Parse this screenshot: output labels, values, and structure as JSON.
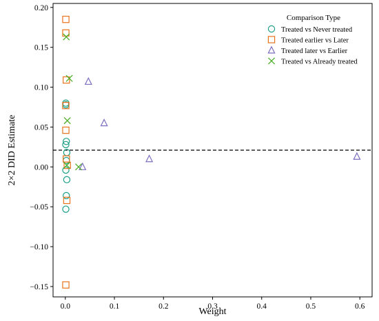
{
  "chart_data": {
    "type": "scatter",
    "xlabel": "Weight",
    "ylabel": "2×2 DID Estimate",
    "xlim": [
      -0.025,
      0.625
    ],
    "ylim": [
      -0.163,
      0.205
    ],
    "x_ticks": [
      "0.0",
      "0.1",
      "0.2",
      "0.3",
      "0.4",
      "0.5",
      "0.6"
    ],
    "x_tick_values": [
      0.0,
      0.1,
      0.2,
      0.3,
      0.4,
      0.5,
      0.6
    ],
    "y_ticks": [
      "0.20",
      "0.15",
      "0.10",
      "0.05",
      "0.00",
      "−0.05",
      "−0.10",
      "−0.15"
    ],
    "y_tick_values": [
      0.2,
      0.15,
      0.1,
      0.05,
      0.0,
      -0.05,
      -0.1,
      -0.15
    ],
    "reference_line": {
      "y": 0.021,
      "style": "dashed",
      "color": "#000000"
    },
    "grid": false,
    "legend": {
      "title": "Comparison Type",
      "placement": "top-right"
    },
    "series": [
      {
        "name": "Treated vs Never treated",
        "marker": "circle",
        "color": "#1a9e85",
        "points": [
          [
            0.001,
            0.08
          ],
          [
            0.001,
            0.078
          ],
          [
            0.002,
            0.032
          ],
          [
            0.001,
            0.028
          ],
          [
            0.003,
            0.018
          ],
          [
            0.002,
            0.008
          ],
          [
            0.001,
            -0.004
          ],
          [
            0.003,
            -0.016
          ],
          [
            0.002,
            -0.036
          ],
          [
            0.001,
            -0.053
          ]
        ]
      },
      {
        "name": "Treated earlier vs Later",
        "marker": "square",
        "color": "#e8731a",
        "points": [
          [
            0.001,
            0.185
          ],
          [
            0.001,
            0.168
          ],
          [
            0.002,
            0.109
          ],
          [
            0.001,
            0.077
          ],
          [
            0.001,
            0.046
          ],
          [
            0.002,
            0.01
          ],
          [
            0.004,
            0.002
          ],
          [
            0.003,
            -0.042
          ],
          [
            0.001,
            -0.148
          ]
        ]
      },
      {
        "name": "Treated later vs Earlier",
        "marker": "triangle",
        "color": "#7b6fc0",
        "points": [
          [
            0.047,
            0.107
          ],
          [
            0.079,
            0.055
          ],
          [
            0.035,
            0.0
          ],
          [
            0.171,
            0.01
          ],
          [
            0.594,
            0.013
          ]
        ]
      },
      {
        "name": "Treated vs Already treated",
        "marker": "x",
        "color": "#4daf2a",
        "points": [
          [
            0.002,
            0.163
          ],
          [
            0.008,
            0.111
          ],
          [
            0.004,
            0.058
          ],
          [
            0.003,
            0.002
          ],
          [
            0.027,
            0.0
          ]
        ]
      }
    ]
  }
}
